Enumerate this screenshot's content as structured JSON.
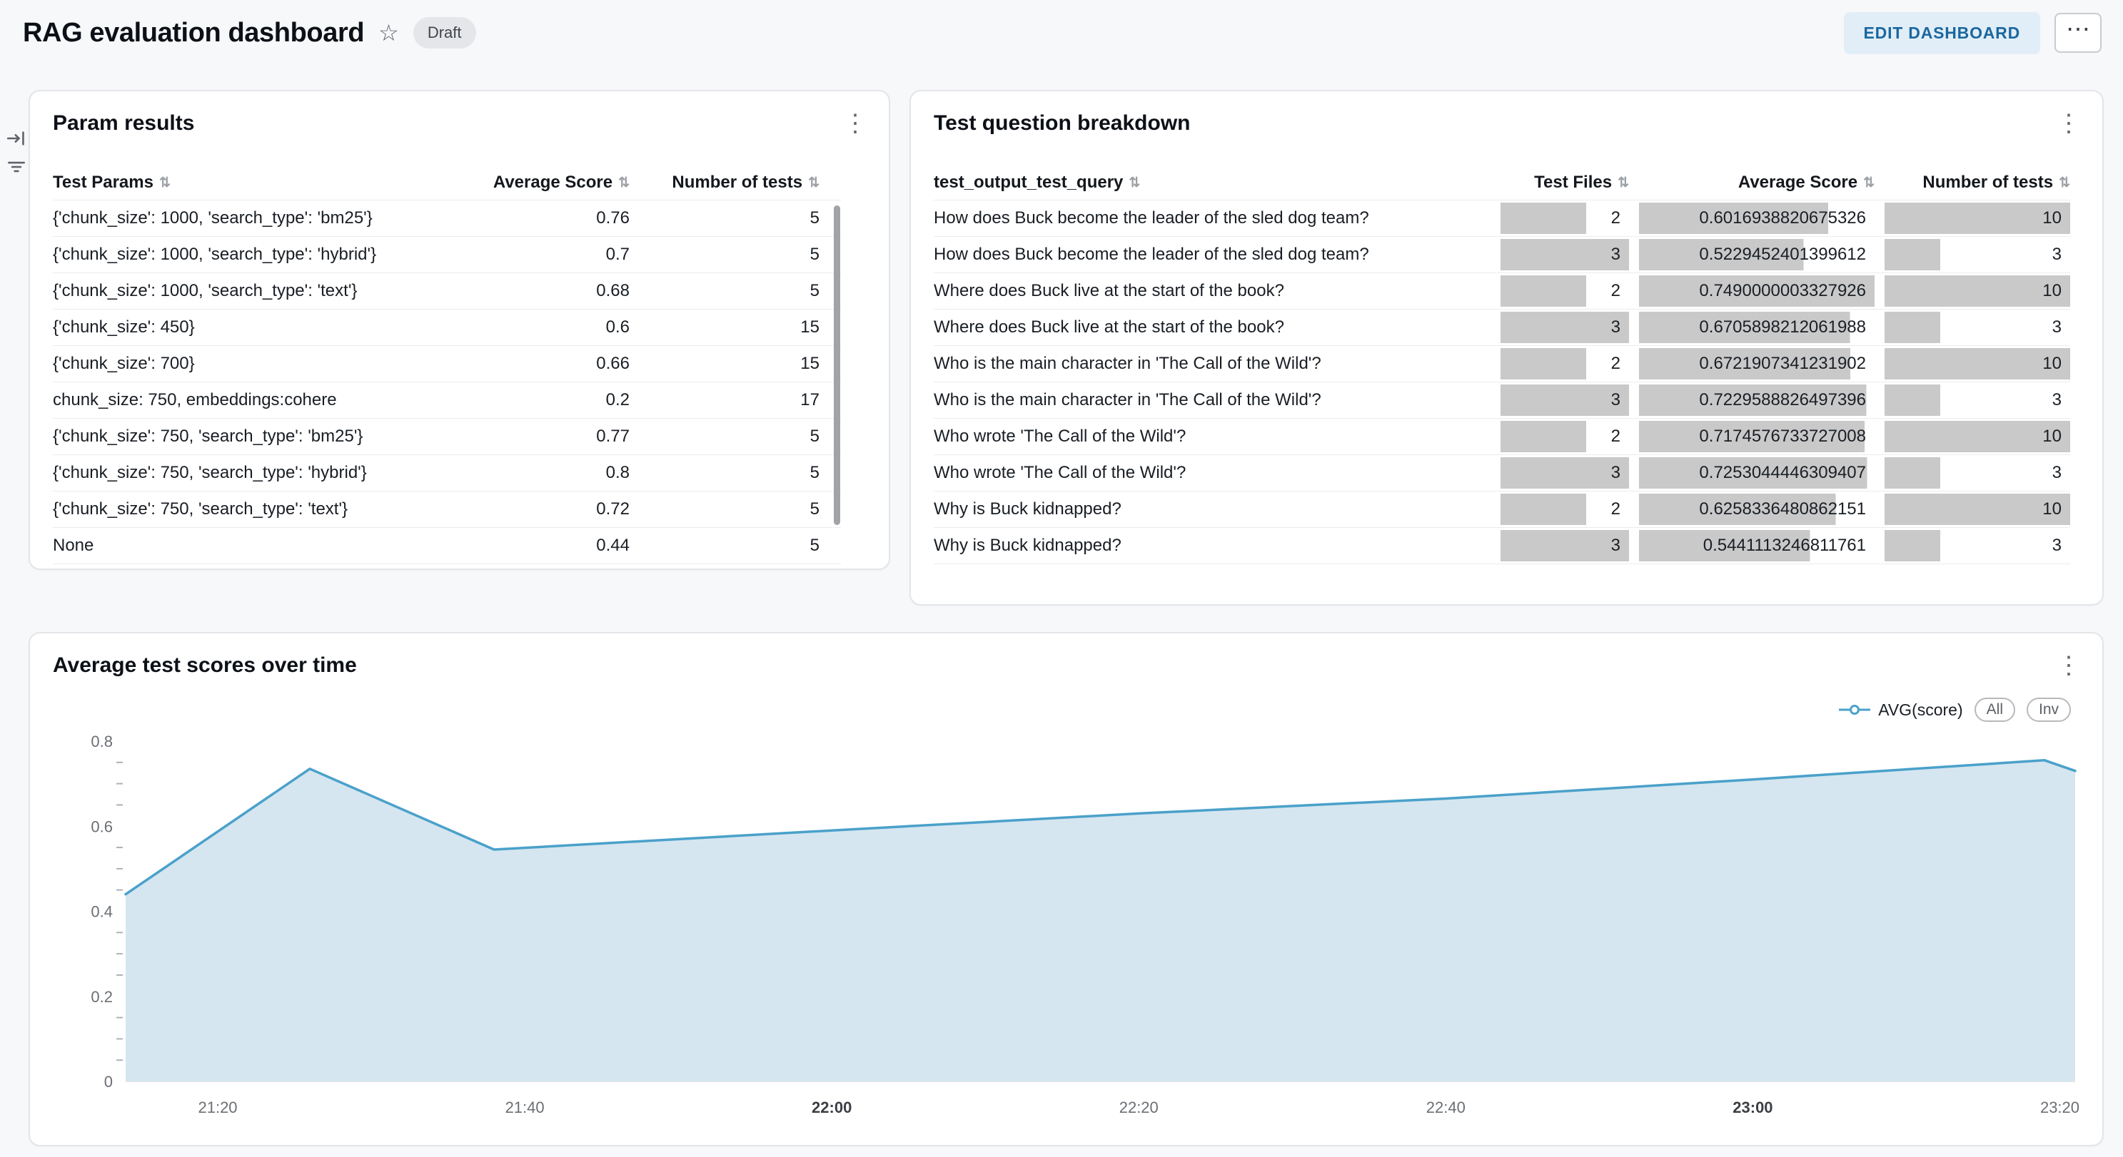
{
  "page": {
    "background": "#f7f8fa"
  },
  "header": {
    "title": "RAG evaluation dashboard",
    "badge": "Draft",
    "edit_button": "EDIT DASHBOARD",
    "more_button": "⋯",
    "star_icon": "☆",
    "accent_color": "#2272b4"
  },
  "side_toolbar": {
    "items": [
      "expand-panel-icon",
      "filter-icon"
    ]
  },
  "param_results": {
    "title": "Param results",
    "columns": [
      "Test Params",
      "Average Score",
      "Number of tests"
    ],
    "rows": [
      {
        "params": "{'chunk_size': 1000, 'search_type': 'bm25'}",
        "avg_score": "0.76",
        "num_tests": "5"
      },
      {
        "params": "{'chunk_size': 1000, 'search_type': 'hybrid'}",
        "avg_score": "0.7",
        "num_tests": "5"
      },
      {
        "params": "{'chunk_size': 1000, 'search_type': 'text'}",
        "avg_score": "0.68",
        "num_tests": "5"
      },
      {
        "params": "{'chunk_size': 450}",
        "avg_score": "0.6",
        "num_tests": "15"
      },
      {
        "params": "{'chunk_size': 700}",
        "avg_score": "0.66",
        "num_tests": "15"
      },
      {
        "params": "chunk_size: 750, embeddings:cohere",
        "avg_score": "0.2",
        "num_tests": "17"
      },
      {
        "params": "{'chunk_size': 750, 'search_type': 'bm25'}",
        "avg_score": "0.77",
        "num_tests": "5"
      },
      {
        "params": "{'chunk_size': 750, 'search_type': 'hybrid'}",
        "avg_score": "0.8",
        "num_tests": "5"
      },
      {
        "params": "{'chunk_size': 750, 'search_type': 'text'}",
        "avg_score": "0.72",
        "num_tests": "5"
      },
      {
        "params": "None",
        "avg_score": "0.44",
        "num_tests": "5"
      }
    ]
  },
  "question_breakdown": {
    "title": "Test question breakdown",
    "columns": [
      "test_output_test_query",
      "Test Files",
      "Average Score",
      "Number of tests"
    ],
    "bar_color": "#c9c9c9",
    "col_max": {
      "test_files": 3,
      "avg_score": 0.7490000003327926,
      "num_tests": 10
    },
    "rows": [
      {
        "query": "How does Buck become the leader of the sled dog team?",
        "test_files": "2",
        "avg_score": "0.6016938820675326",
        "num_tests": "10"
      },
      {
        "query": "How does Buck become the leader of the sled dog team?",
        "test_files": "3",
        "avg_score": "0.5229452401399612",
        "num_tests": "3"
      },
      {
        "query": "Where does Buck live at the start of the book?",
        "test_files": "2",
        "avg_score": "0.7490000003327926",
        "num_tests": "10"
      },
      {
        "query": "Where does Buck live at the start of the book?",
        "test_files": "3",
        "avg_score": "0.6705898212061988",
        "num_tests": "3"
      },
      {
        "query": "Who is the main character in 'The Call of the Wild'?",
        "test_files": "2",
        "avg_score": "0.6721907341231902",
        "num_tests": "10"
      },
      {
        "query": "Who is the main character in 'The Call of the Wild'?",
        "test_files": "3",
        "avg_score": "0.7229588826497396",
        "num_tests": "3"
      },
      {
        "query": "Who wrote 'The Call of the Wild'?",
        "test_files": "2",
        "avg_score": "0.7174576733727008",
        "num_tests": "10"
      },
      {
        "query": "Who wrote 'The Call of the Wild'?",
        "test_files": "3",
        "avg_score": "0.7253044446309407",
        "num_tests": "3"
      },
      {
        "query": "Why is Buck kidnapped?",
        "test_files": "2",
        "avg_score": "0.6258336480862151",
        "num_tests": "10"
      },
      {
        "query": "Why is Buck kidnapped?",
        "test_files": "3",
        "avg_score": "0.5441113246811761",
        "num_tests": "3"
      }
    ]
  },
  "scores_chart": {
    "title": "Average test scores over time",
    "legend": {
      "series": "AVG(score)",
      "all_button": "All",
      "inv_button": "Inv"
    },
    "line_color": "#4aa1ca",
    "fill_color": "#d5e6f0"
  },
  "chart_data": {
    "type": "area",
    "title": "Average test scores over time",
    "series": [
      {
        "name": "AVG(score)",
        "points": [
          [
            "21:14",
            0.44
          ],
          [
            "21:26",
            0.735
          ],
          [
            "21:38",
            0.545
          ],
          [
            "22:00",
            0.59
          ],
          [
            "22:20",
            0.63
          ],
          [
            "22:40",
            0.665
          ],
          [
            "23:00",
            0.71
          ],
          [
            "23:19",
            0.755
          ],
          [
            "23:21",
            0.73
          ]
        ]
      }
    ],
    "x_ticks": [
      {
        "label": "21:20",
        "bold": false
      },
      {
        "label": "21:40",
        "bold": false
      },
      {
        "label": "22:00",
        "bold": true
      },
      {
        "label": "22:20",
        "bold": false
      },
      {
        "label": "22:40",
        "bold": false
      },
      {
        "label": "23:00",
        "bold": true
      },
      {
        "label": "23:20",
        "bold": false
      }
    ],
    "y_ticks": [
      0,
      0.2,
      0.4,
      0.6,
      0.8
    ],
    "y_minor_step": 0.05,
    "x_range": [
      "21:14",
      "23:21"
    ],
    "ylim": [
      0,
      0.8
    ],
    "grid": false,
    "legend_position": "top-right"
  }
}
